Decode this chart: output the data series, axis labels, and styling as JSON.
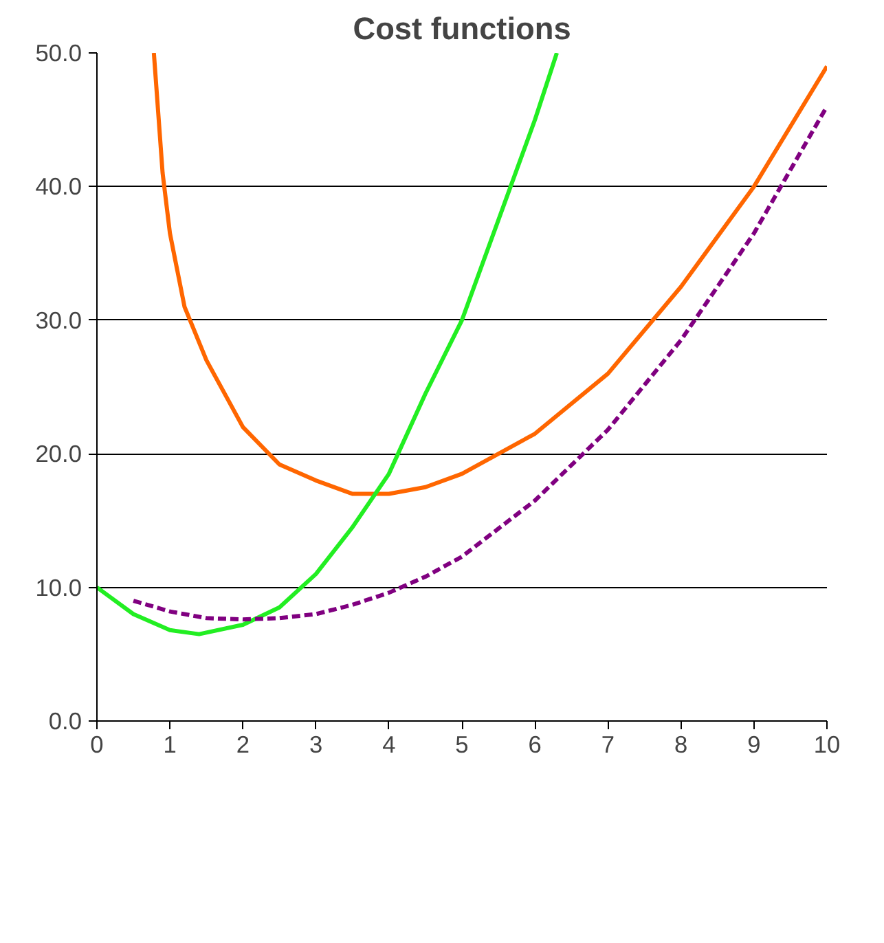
{
  "chart_data": {
    "type": "line",
    "title": "Cost functions",
    "xlim": [
      0,
      10
    ],
    "xticks": [
      0,
      1,
      2,
      3,
      4,
      5,
      6,
      7,
      8,
      9,
      10
    ],
    "ylim": [
      0,
      50
    ],
    "yticks": [
      {
        "value": 0,
        "label": "0.0"
      },
      {
        "value": 10,
        "label": "10.0"
      },
      {
        "value": 20,
        "label": "20.0"
      },
      {
        "value": 30,
        "label": "30.0"
      },
      {
        "value": 40,
        "label": "40.0"
      },
      {
        "value": 50,
        "label": "50.0"
      }
    ],
    "grid": "y",
    "marker": "none",
    "series": [
      {
        "color": "#ff6600",
        "line_style": "solid",
        "x": [
          0.78,
          0.9,
          1,
          1.2,
          1.5,
          2,
          2.5,
          3,
          3.5,
          4,
          4.5,
          5,
          6,
          7,
          8,
          9,
          10
        ],
        "values": [
          50,
          41,
          36.5,
          31,
          27,
          22,
          19.2,
          18,
          17,
          17,
          17.5,
          18.5,
          21.5,
          26,
          32.5,
          40,
          49
        ]
      },
      {
        "color": "#22ee22",
        "line_style": "solid",
        "x": [
          0,
          0.5,
          1,
          1.4,
          2,
          2.5,
          3,
          3.5,
          4,
          4.5,
          5,
          5.5,
          6,
          6.3
        ],
        "values": [
          10,
          8,
          6.8,
          6.5,
          7.2,
          8.5,
          11,
          14.5,
          18.5,
          24.5,
          30,
          37.5,
          45,
          50
        ]
      },
      {
        "color": "#800080",
        "line_style": "dashed",
        "x": [
          0.5,
          1,
          1.5,
          2,
          2.5,
          3,
          3.5,
          4,
          4.5,
          5,
          6,
          7,
          8,
          9,
          10
        ],
        "values": [
          9,
          8.2,
          7.7,
          7.6,
          7.7,
          8,
          8.7,
          9.6,
          10.8,
          12.3,
          16.5,
          21.8,
          28.5,
          36.5,
          46
        ]
      }
    ]
  }
}
